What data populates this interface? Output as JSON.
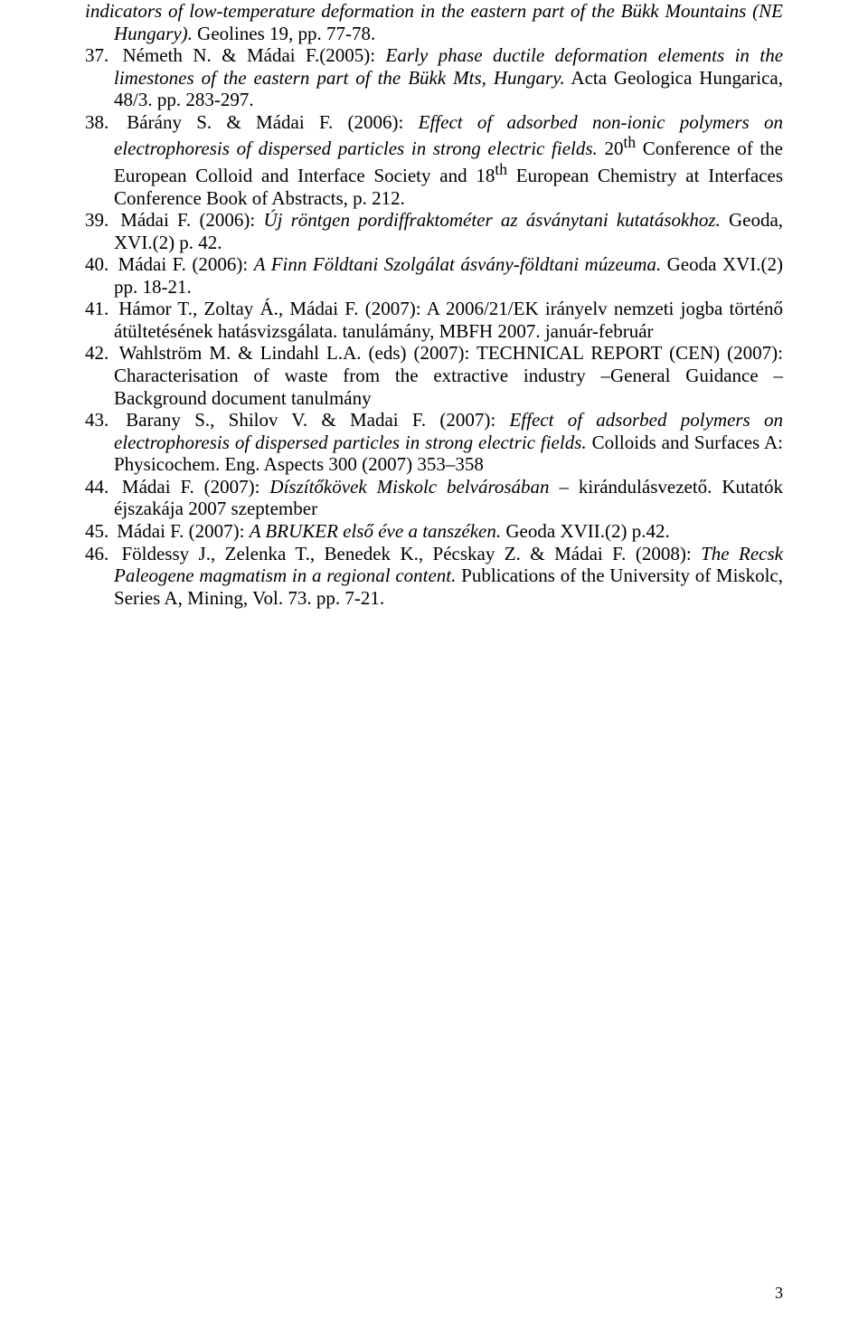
{
  "continuation": {
    "text_pre": "indicators of low-temperature deformation in the eastern part of the Bükk Mountains (NE Hungary).",
    "text_post": " Geolines 19, pp. 77-78."
  },
  "refs": [
    {
      "plain1": "Németh N. & Mádai F.(2005): ",
      "italic1": "Early phase ductile deformation elements in the limestones of the eastern part of the Bükk Mts, Hungary.",
      "plain2": " Acta Geologica Hungarica, 48/3. pp. 283-297."
    },
    {
      "plain1": "Bárány S. & Mádai F. (2006): ",
      "italic1": "Effect of adsorbed non-ionic polymers on electrophoresis of dispersed particles in strong electric fields.",
      "plain2": " 20",
      "sup": "th",
      "plain3": " Conference of the European Colloid and Interface Society and 18",
      "sup2": "th",
      "plain4": " European Chemistry at Interfaces Conference Book of Abstracts, p. 212."
    },
    {
      "plain1": "Mádai F. (2006): ",
      "italic1": "Új röntgen pordiffraktométer az ásványtani kutatásokhoz.",
      "plain2": " Geoda, XVI.(2) p. 42."
    },
    {
      "plain1": "Mádai F. (2006): ",
      "italic1": "A Finn Földtani Szolgálat ásvány-földtani múzeuma.",
      "plain2": " Geoda XVI.(2) pp. 18-21."
    },
    {
      "plain1": "Hámor T., Zoltay Á., Mádai F. (2007): A 2006/21/EK irányelv nemzeti jogba történő átültetésének hatásvizsgálata. tanulámány, MBFH 2007. január-február"
    },
    {
      "plain1": "Wahlström M. & Lindahl L.A. (eds) (2007): TECHNICAL REPORT (CEN) (2007): Characterisation of waste from the extractive industry –General Guidance – Background document tanulmány"
    },
    {
      "plain1": "Barany S., Shilov V. & Madai F. (2007): ",
      "italic1": "Effect of adsorbed polymers on electrophoresis of dispersed particles in strong electric fields.",
      "plain2": " Colloids and Surfaces A: Physicochem. Eng. Aspects 300 (2007) 353–358"
    },
    {
      "plain1": "Mádai F. (2007): ",
      "italic1": "Díszítőkövek Miskolc belvárosában",
      "plain2": " – kirándulásvezető. Kutatók éjszakája 2007 szeptember"
    },
    {
      "plain1": "Mádai F. (2007): ",
      "italic1": "A BRUKER első éve a tanszéken.",
      "plain2": " Geoda XVII.(2) p.42."
    },
    {
      "plain1": "Földessy J., Zelenka T., Benedek K., Pécskay Z. & Mádai F. (2008): ",
      "italic1": "The Recsk Paleogene magmatism in a regional content.",
      "plain2": " Publications of the University of Miskolc, Series A, Mining, Vol. 73. pp. 7-21."
    }
  ],
  "page_number": "3"
}
